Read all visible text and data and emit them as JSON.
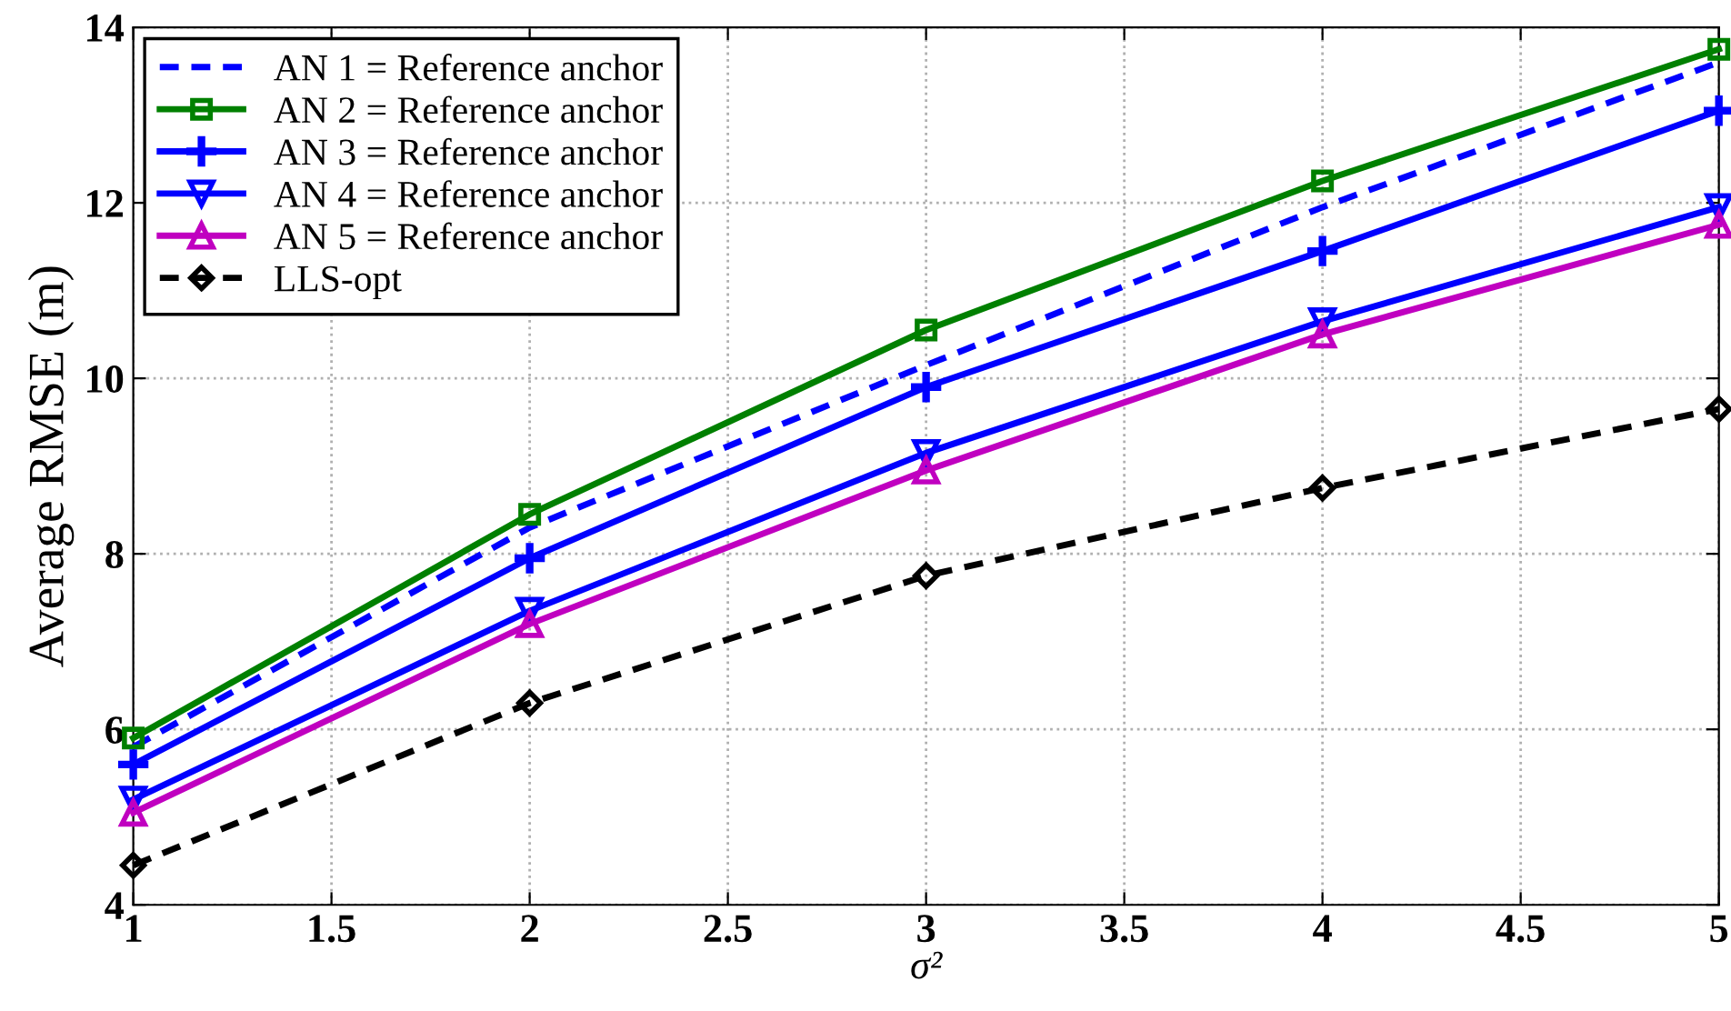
{
  "chart_data": {
    "type": "line",
    "xlabel": "σ²",
    "ylabel": "Average RMSE (m)",
    "x": [
      1,
      2,
      3,
      4,
      5
    ],
    "series": [
      {
        "name": "AN 1 = Reference anchor",
        "color": "#0000ff",
        "marker": "none",
        "line_style": "dashed",
        "values": [
          5.8,
          8.3,
          10.15,
          11.95,
          13.6
        ]
      },
      {
        "name": "AN 2 = Reference anchor",
        "color": "#008000",
        "marker": "square",
        "line_style": "solid",
        "values": [
          5.9,
          8.45,
          10.55,
          12.25,
          13.75
        ]
      },
      {
        "name": "AN 3 = Reference anchor",
        "color": "#0000ff",
        "marker": "cross",
        "line_style": "solid",
        "values": [
          5.6,
          7.95,
          9.9,
          11.45,
          13.05
        ]
      },
      {
        "name": "AN 4 = Reference anchor",
        "color": "#0000ff",
        "marker": "triangle_down",
        "line_style": "solid",
        "values": [
          5.2,
          7.35,
          9.15,
          10.65,
          11.95
        ]
      },
      {
        "name": "AN 5 = Reference anchor",
        "color": "#c000c0",
        "marker": "triangle",
        "line_style": "solid",
        "values": [
          5.05,
          7.2,
          8.95,
          10.5,
          11.75
        ]
      },
      {
        "name": "LLS-opt",
        "color": "#000000",
        "marker": "diamond",
        "line_style": "dashed",
        "values": [
          4.45,
          6.3,
          7.75,
          8.75,
          9.65
        ]
      }
    ],
    "xlim": [
      1,
      5
    ],
    "ylim": [
      4,
      14
    ],
    "xticks": [
      1,
      1.5,
      2,
      2.5,
      3,
      3.5,
      4,
      4.5,
      5
    ],
    "yticks": [
      4,
      6,
      8,
      10,
      12,
      14
    ],
    "grid": true,
    "legend": "top left"
  }
}
